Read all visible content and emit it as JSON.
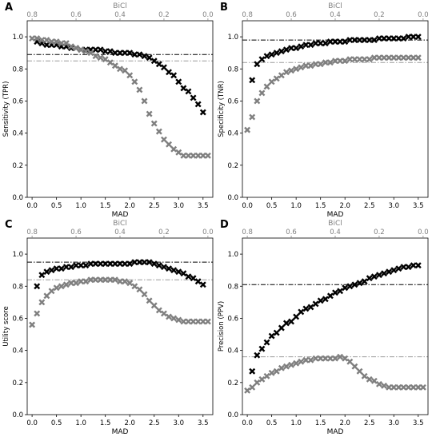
{
  "chart_data": [
    {
      "panel_label": "A",
      "type": "scatter",
      "xlabel": "MAD",
      "top_axis_label": "BiCl",
      "ylabel": "Sensitivity (TPR)",
      "xlim": [
        -0.1,
        3.7
      ],
      "ylim": [
        0,
        1.1
      ],
      "xticks": [
        "0.0",
        "0.5",
        "1.0",
        "1.5",
        "2.0",
        "2.5",
        "3.0",
        "3.5"
      ],
      "top_ticks": [
        "0.8",
        "0.6",
        "0.4",
        "0.2",
        "0.0"
      ],
      "yticks": [
        "0.0",
        "0.2",
        "0.4",
        "0.6",
        "0.8",
        "1.0"
      ],
      "grid": false,
      "hlines": [
        {
          "y": 0.89,
          "color": "#000000"
        },
        {
          "y": 0.85,
          "color": "#9a9a9a"
        }
      ],
      "series": [
        {
          "color": "#000000",
          "x": [
            0.1,
            0.2,
            0.3,
            0.4,
            0.5,
            0.6,
            0.7,
            0.8,
            0.9,
            1.0,
            1.1,
            1.2,
            1.3,
            1.4,
            1.5,
            1.6,
            1.7,
            1.8,
            1.9,
            2.0,
            2.1,
            2.2,
            2.3,
            2.4,
            2.5,
            2.6,
            2.7,
            2.8,
            2.9,
            3.0,
            3.1,
            3.2,
            3.3,
            3.4,
            3.5
          ],
          "y": [
            0.97,
            0.96,
            0.95,
            0.95,
            0.95,
            0.94,
            0.94,
            0.93,
            0.93,
            0.92,
            0.92,
            0.92,
            0.92,
            0.92,
            0.91,
            0.91,
            0.9,
            0.9,
            0.9,
            0.9,
            0.89,
            0.89,
            0.88,
            0.87,
            0.85,
            0.83,
            0.81,
            0.78,
            0.76,
            0.72,
            0.68,
            0.66,
            0.62,
            0.58,
            0.53
          ]
        },
        {
          "color": "#7f7f7f",
          "x": [
            0.0,
            0.1,
            0.2,
            0.3,
            0.4,
            0.5,
            0.6,
            0.7,
            0.8,
            0.9,
            1.0,
            1.1,
            1.2,
            1.3,
            1.4,
            1.5,
            1.6,
            1.7,
            1.8,
            1.9,
            2.0,
            2.1,
            2.2,
            2.3,
            2.4,
            2.5,
            2.6,
            2.7,
            2.8,
            2.9,
            3.0,
            3.1,
            3.2,
            3.3,
            3.4,
            3.5,
            3.6
          ],
          "y": [
            0.99,
            0.99,
            0.98,
            0.98,
            0.97,
            0.97,
            0.96,
            0.96,
            0.94,
            0.93,
            0.92,
            0.91,
            0.9,
            0.88,
            0.87,
            0.86,
            0.84,
            0.82,
            0.8,
            0.79,
            0.76,
            0.72,
            0.67,
            0.6,
            0.52,
            0.46,
            0.41,
            0.36,
            0.33,
            0.3,
            0.28,
            0.26,
            0.26,
            0.26,
            0.26,
            0.26,
            0.26
          ]
        }
      ]
    },
    {
      "panel_label": "B",
      "type": "scatter",
      "xlabel": "MAD",
      "top_axis_label": "BiCl",
      "ylabel": "Specificity (TNR)",
      "xlim": [
        -0.1,
        3.7
      ],
      "ylim": [
        0,
        1.1
      ],
      "xticks": [
        "0.0",
        "0.5",
        "1.0",
        "1.5",
        "2.0",
        "2.5",
        "3.0",
        "3.5"
      ],
      "top_ticks": [
        "0.8",
        "0.6",
        "0.4",
        "0.2",
        "0.0"
      ],
      "yticks": [
        "0.0",
        "0.2",
        "0.4",
        "0.6",
        "0.8",
        "1.0"
      ],
      "grid": false,
      "hlines": [
        {
          "y": 0.98,
          "color": "#000000"
        },
        {
          "y": 0.84,
          "color": "#9a9a9a"
        }
      ],
      "series": [
        {
          "color": "#000000",
          "x": [
            0.1,
            0.2,
            0.3,
            0.4,
            0.5,
            0.6,
            0.7,
            0.8,
            0.9,
            1.0,
            1.1,
            1.2,
            1.3,
            1.4,
            1.5,
            1.6,
            1.7,
            1.8,
            1.9,
            2.0,
            2.1,
            2.2,
            2.3,
            2.4,
            2.5,
            2.6,
            2.7,
            2.8,
            2.9,
            3.0,
            3.1,
            3.2,
            3.3,
            3.4,
            3.5
          ],
          "y": [
            0.73,
            0.83,
            0.86,
            0.88,
            0.89,
            0.9,
            0.91,
            0.92,
            0.93,
            0.93,
            0.94,
            0.95,
            0.95,
            0.96,
            0.96,
            0.96,
            0.97,
            0.97,
            0.97,
            0.97,
            0.98,
            0.98,
            0.98,
            0.98,
            0.98,
            0.98,
            0.99,
            0.99,
            0.99,
            0.99,
            0.99,
            0.99,
            1.0,
            1.0,
            1.0
          ]
        },
        {
          "color": "#7f7f7f",
          "x": [
            0.0,
            0.1,
            0.2,
            0.3,
            0.4,
            0.5,
            0.6,
            0.7,
            0.8,
            0.9,
            1.0,
            1.1,
            1.2,
            1.3,
            1.4,
            1.5,
            1.6,
            1.7,
            1.8,
            1.9,
            2.0,
            2.1,
            2.2,
            2.3,
            2.4,
            2.5,
            2.6,
            2.7,
            2.8,
            2.9,
            3.0,
            3.1,
            3.2,
            3.3,
            3.4,
            3.5
          ],
          "y": [
            0.42,
            0.5,
            0.6,
            0.65,
            0.69,
            0.72,
            0.74,
            0.76,
            0.78,
            0.79,
            0.8,
            0.81,
            0.82,
            0.82,
            0.83,
            0.83,
            0.84,
            0.84,
            0.85,
            0.85,
            0.85,
            0.86,
            0.86,
            0.86,
            0.86,
            0.86,
            0.87,
            0.87,
            0.87,
            0.87,
            0.87,
            0.87,
            0.87,
            0.87,
            0.87,
            0.87
          ]
        }
      ]
    },
    {
      "panel_label": "C",
      "type": "scatter",
      "xlabel": "MAD",
      "top_axis_label": "BiCl",
      "ylabel": "Utility score",
      "xlim": [
        -0.1,
        3.7
      ],
      "ylim": [
        0,
        1.1
      ],
      "xticks": [
        "0.0",
        "0.5",
        "1.0",
        "1.5",
        "2.0",
        "2.5",
        "3.0",
        "3.5"
      ],
      "top_ticks": [
        "0.8",
        "0.6",
        "0.4",
        "0.2",
        "0.0"
      ],
      "yticks": [
        "0.0",
        "0.2",
        "0.4",
        "0.6",
        "0.8",
        "1.0"
      ],
      "grid": false,
      "hlines": [
        {
          "y": 0.95,
          "color": "#000000"
        },
        {
          "y": 0.84,
          "color": "#9a9a9a"
        }
      ],
      "series": [
        {
          "color": "#000000",
          "x": [
            0.1,
            0.2,
            0.3,
            0.4,
            0.5,
            0.6,
            0.7,
            0.8,
            0.9,
            1.0,
            1.1,
            1.2,
            1.3,
            1.4,
            1.5,
            1.6,
            1.7,
            1.8,
            1.9,
            2.0,
            2.1,
            2.2,
            2.3,
            2.4,
            2.5,
            2.6,
            2.7,
            2.8,
            2.9,
            3.0,
            3.1,
            3.2,
            3.3,
            3.4,
            3.5
          ],
          "y": [
            0.8,
            0.87,
            0.89,
            0.9,
            0.91,
            0.91,
            0.92,
            0.92,
            0.93,
            0.93,
            0.93,
            0.94,
            0.94,
            0.94,
            0.94,
            0.94,
            0.94,
            0.94,
            0.94,
            0.94,
            0.95,
            0.95,
            0.95,
            0.95,
            0.94,
            0.93,
            0.92,
            0.91,
            0.9,
            0.89,
            0.88,
            0.86,
            0.85,
            0.83,
            0.81
          ]
        },
        {
          "color": "#7f7f7f",
          "x": [
            0.0,
            0.1,
            0.2,
            0.3,
            0.4,
            0.5,
            0.6,
            0.7,
            0.8,
            0.9,
            1.0,
            1.1,
            1.2,
            1.3,
            1.4,
            1.5,
            1.6,
            1.7,
            1.8,
            1.9,
            2.0,
            2.1,
            2.2,
            2.3,
            2.4,
            2.5,
            2.6,
            2.7,
            2.8,
            2.9,
            3.0,
            3.1,
            3.2,
            3.3,
            3.4,
            3.5,
            3.6
          ],
          "y": [
            0.56,
            0.63,
            0.7,
            0.74,
            0.77,
            0.79,
            0.8,
            0.81,
            0.82,
            0.82,
            0.83,
            0.83,
            0.84,
            0.84,
            0.84,
            0.84,
            0.84,
            0.84,
            0.83,
            0.83,
            0.82,
            0.8,
            0.78,
            0.75,
            0.71,
            0.68,
            0.65,
            0.63,
            0.61,
            0.6,
            0.59,
            0.58,
            0.58,
            0.58,
            0.58,
            0.58,
            0.58
          ]
        }
      ]
    },
    {
      "panel_label": "D",
      "type": "scatter",
      "xlabel": "MAD",
      "top_axis_label": "BiCl",
      "ylabel": "Precision (PPV)",
      "xlim": [
        -0.1,
        3.7
      ],
      "ylim": [
        0,
        1.1
      ],
      "xticks": [
        "0.0",
        "0.5",
        "1.0",
        "1.5",
        "2.0",
        "2.5",
        "3.0",
        "3.5"
      ],
      "top_ticks": [
        "0.8",
        "0.6",
        "0.4",
        "0.2",
        "0.0"
      ],
      "yticks": [
        "0.0",
        "0.2",
        "0.4",
        "0.6",
        "0.8",
        "1.0"
      ],
      "grid": false,
      "hlines": [
        {
          "y": 0.81,
          "color": "#000000"
        },
        {
          "y": 0.36,
          "color": "#9a9a9a"
        }
      ],
      "series": [
        {
          "color": "#000000",
          "x": [
            0.1,
            0.2,
            0.3,
            0.4,
            0.5,
            0.6,
            0.7,
            0.8,
            0.9,
            1.0,
            1.1,
            1.2,
            1.3,
            1.4,
            1.5,
            1.6,
            1.7,
            1.8,
            1.9,
            2.0,
            2.1,
            2.2,
            2.3,
            2.4,
            2.5,
            2.6,
            2.7,
            2.8,
            2.9,
            3.0,
            3.1,
            3.2,
            3.3,
            3.4,
            3.5
          ],
          "y": [
            0.27,
            0.37,
            0.41,
            0.45,
            0.49,
            0.51,
            0.54,
            0.57,
            0.58,
            0.61,
            0.64,
            0.66,
            0.67,
            0.69,
            0.71,
            0.72,
            0.74,
            0.76,
            0.77,
            0.79,
            0.8,
            0.81,
            0.82,
            0.83,
            0.85,
            0.86,
            0.87,
            0.88,
            0.89,
            0.9,
            0.91,
            0.92,
            0.92,
            0.93,
            0.93
          ]
        },
        {
          "color": "#7f7f7f",
          "x": [
            0.0,
            0.1,
            0.2,
            0.3,
            0.4,
            0.5,
            0.6,
            0.7,
            0.8,
            0.9,
            1.0,
            1.1,
            1.2,
            1.3,
            1.4,
            1.5,
            1.6,
            1.7,
            1.8,
            1.9,
            2.0,
            2.1,
            2.2,
            2.3,
            2.4,
            2.5,
            2.6,
            2.7,
            2.8,
            2.9,
            3.0,
            3.1,
            3.2,
            3.3,
            3.4,
            3.5,
            3.6
          ],
          "y": [
            0.15,
            0.17,
            0.2,
            0.22,
            0.24,
            0.26,
            0.27,
            0.29,
            0.3,
            0.31,
            0.32,
            0.33,
            0.34,
            0.34,
            0.35,
            0.35,
            0.35,
            0.35,
            0.35,
            0.36,
            0.35,
            0.33,
            0.3,
            0.27,
            0.24,
            0.22,
            0.21,
            0.19,
            0.18,
            0.17,
            0.17,
            0.17,
            0.17,
            0.17,
            0.17,
            0.17,
            0.17
          ]
        }
      ]
    }
  ]
}
